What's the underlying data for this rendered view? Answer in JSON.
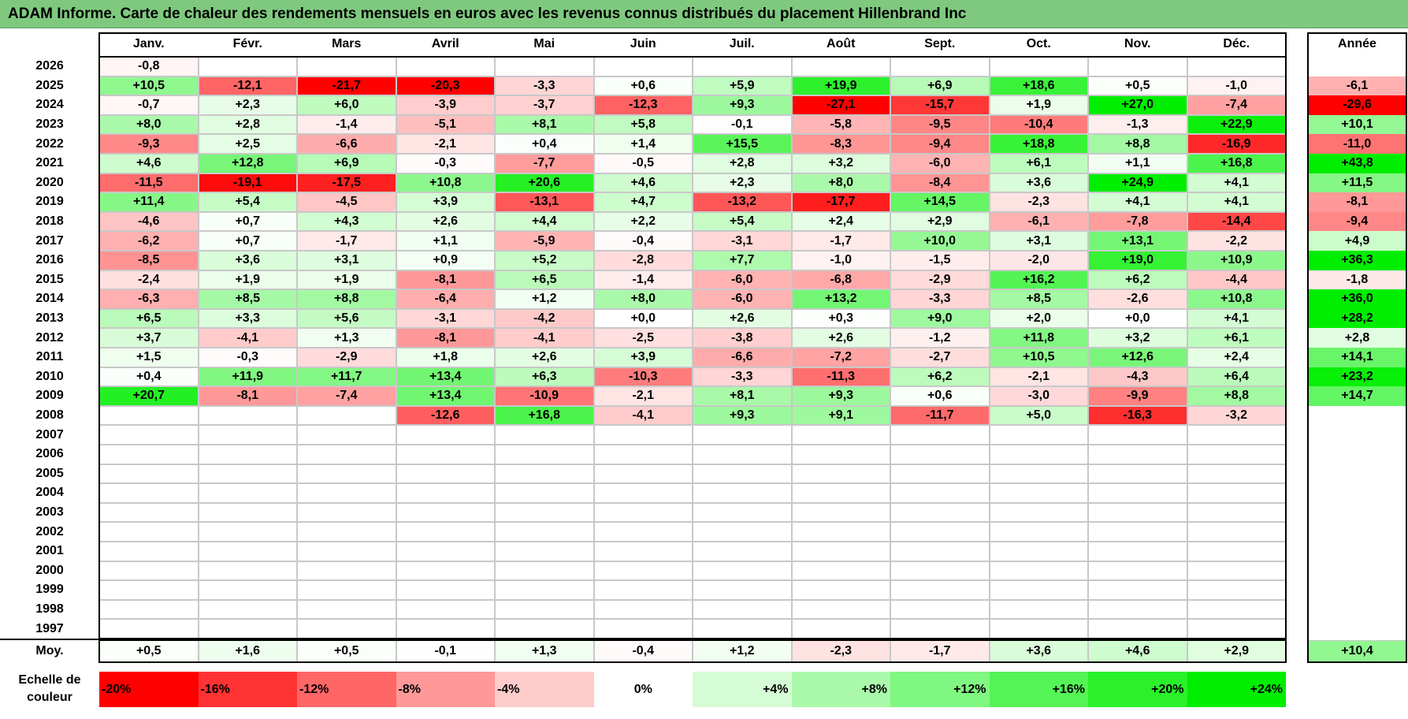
{
  "title": "ADAM Informe. Carte de chaleur des rendements mensuels en euros avec les revenus connus distribués du placement Hillenbrand Inc",
  "months": [
    "Janv.",
    "Févr.",
    "Mars",
    "Avril",
    "Mai",
    "Juin",
    "Juil.",
    "Août",
    "Sept.",
    "Oct.",
    "Nov.",
    "Déc."
  ],
  "annual_header": "Année",
  "avg_label": "Moy.",
  "scale_label_line1": "Echelle de",
  "scale_label_line2": "couleur",
  "scale": [
    "-20%",
    "-16%",
    "-12%",
    "-8%",
    "-4%",
    "0%",
    "+4%",
    "+8%",
    "+12%",
    "+16%",
    "+20%",
    "+24%"
  ],
  "colors": {
    "negative_max": "#ff0000",
    "zero": "#ffffff",
    "positive_max": "#00ee00",
    "title_bg": "#7fc97f"
  },
  "chart_data": {
    "type": "heatmap",
    "title": "ADAM Informe. Carte de chaleur des rendements mensuels en euros avec les revenus connus distribués du placement Hillenbrand Inc",
    "x_categories": [
      "Janv.",
      "Févr.",
      "Mars",
      "Avril",
      "Mai",
      "Juin",
      "Juil.",
      "Août",
      "Sept.",
      "Oct.",
      "Nov.",
      "Déc."
    ],
    "rows": [
      {
        "year": "2026",
        "values": [
          "-0,8",
          "",
          "",
          "",
          "",
          "",
          "",
          "",
          "",
          "",
          "",
          ""
        ],
        "annual": ""
      },
      {
        "year": "2025",
        "values": [
          "+10,5",
          "-12,1",
          "-21,7",
          "-20,3",
          "-3,3",
          "+0,6",
          "+5,9",
          "+19,9",
          "+6,9",
          "+18,6",
          "+0,5",
          "-1,0"
        ],
        "annual": "-6,1"
      },
      {
        "year": "2024",
        "values": [
          "-0,7",
          "+2,3",
          "+6,0",
          "-3,9",
          "-3,7",
          "-12,3",
          "+9,3",
          "-27,1",
          "-15,7",
          "+1,9",
          "+27,0",
          "-7,4"
        ],
        "annual": "-29,6"
      },
      {
        "year": "2023",
        "values": [
          "+8,0",
          "+2,8",
          "-1,4",
          "-5,1",
          "+8,1",
          "+5,8",
          "-0,1",
          "-5,8",
          "-9,5",
          "-10,4",
          "-1,3",
          "+22,9"
        ],
        "annual": "+10,1"
      },
      {
        "year": "2022",
        "values": [
          "-9,3",
          "+2,5",
          "-6,6",
          "-2,1",
          "+0,4",
          "+1,4",
          "+15,5",
          "-8,3",
          "-9,4",
          "+18,8",
          "+8,8",
          "-16,9"
        ],
        "annual": "-11,0"
      },
      {
        "year": "2021",
        "values": [
          "+4,6",
          "+12,8",
          "+6,9",
          "-0,3",
          "-7,7",
          "-0,5",
          "+2,8",
          "+3,2",
          "-6,0",
          "+6,1",
          "+1,1",
          "+16,8"
        ],
        "annual": "+43,8"
      },
      {
        "year": "2020",
        "values": [
          "-11,5",
          "-19,1",
          "-17,5",
          "+10,8",
          "+20,6",
          "+4,6",
          "+2,3",
          "+8,0",
          "-8,4",
          "+3,6",
          "+24,9",
          "+4,1"
        ],
        "annual": "+11,5"
      },
      {
        "year": "2019",
        "values": [
          "+11,4",
          "+5,4",
          "-4,5",
          "+3,9",
          "-13,1",
          "+4,7",
          "-13,2",
          "-17,7",
          "+14,5",
          "-2,3",
          "+4,1",
          "+4,1"
        ],
        "annual": "-8,1"
      },
      {
        "year": "2018",
        "values": [
          "-4,6",
          "+0,7",
          "+4,3",
          "+2,6",
          "+4,4",
          "+2,2",
          "+5,4",
          "+2,4",
          "+2,9",
          "-6,1",
          "-7,8",
          "-14,4"
        ],
        "annual": "-9,4"
      },
      {
        "year": "2017",
        "values": [
          "-6,2",
          "+0,7",
          "-1,7",
          "+1,1",
          "-5,9",
          "-0,4",
          "-3,1",
          "-1,7",
          "+10,0",
          "+3,1",
          "+13,1",
          "-2,2"
        ],
        "annual": "+4,9"
      },
      {
        "year": "2016",
        "values": [
          "-8,5",
          "+3,6",
          "+3,1",
          "+0,9",
          "+5,2",
          "-2,8",
          "+7,7",
          "-1,0",
          "-1,5",
          "-2,0",
          "+19,0",
          "+10,9"
        ],
        "annual": "+36,3"
      },
      {
        "year": "2015",
        "values": [
          "-2,4",
          "+1,9",
          "+1,9",
          "-8,1",
          "+6,5",
          "-1,4",
          "-6,0",
          "-6,8",
          "-2,9",
          "+16,2",
          "+6,2",
          "-4,4"
        ],
        "annual": "-1,8"
      },
      {
        "year": "2014",
        "values": [
          "-6,3",
          "+8,5",
          "+8,8",
          "-6,4",
          "+1,2",
          "+8,0",
          "-6,0",
          "+13,2",
          "-3,3",
          "+8,5",
          "-2,6",
          "+10,8"
        ],
        "annual": "+36,0"
      },
      {
        "year": "2013",
        "values": [
          "+6,5",
          "+3,3",
          "+5,6",
          "-3,1",
          "-4,2",
          "+0,0",
          "+2,6",
          "+0,3",
          "+9,0",
          "+2,0",
          "+0,0",
          "+4,1"
        ],
        "annual": "+28,2"
      },
      {
        "year": "2012",
        "values": [
          "+3,7",
          "-4,1",
          "+1,3",
          "-8,1",
          "-4,1",
          "-2,5",
          "-3,8",
          "+2,6",
          "-1,2",
          "+11,8",
          "+3,2",
          "+6,1"
        ],
        "annual": "+2,8"
      },
      {
        "year": "2011",
        "values": [
          "+1,5",
          "-0,3",
          "-2,9",
          "+1,8",
          "+2,6",
          "+3,9",
          "-6,6",
          "-7,2",
          "-2,7",
          "+10,5",
          "+12,6",
          "+2,4"
        ],
        "annual": "+14,1"
      },
      {
        "year": "2010",
        "values": [
          "+0,4",
          "+11,9",
          "+11,7",
          "+13,4",
          "+6,3",
          "-10,3",
          "-3,3",
          "-11,3",
          "+6,2",
          "-2,1",
          "-4,3",
          "+6,4"
        ],
        "annual": "+23,2"
      },
      {
        "year": "2009",
        "values": [
          "+20,7",
          "-8,1",
          "-7,4",
          "+13,4",
          "-10,9",
          "-2,1",
          "+8,1",
          "+9,3",
          "+0,6",
          "-3,0",
          "-9,9",
          "+8,8"
        ],
        "annual": "+14,7"
      },
      {
        "year": "2008",
        "values": [
          "",
          "",
          "",
          "-12,6",
          "+16,8",
          "-4,1",
          "+9,3",
          "+9,1",
          "-11,7",
          "+5,0",
          "-16,3",
          "-3,2"
        ],
        "annual": ""
      },
      {
        "year": "2007",
        "values": [
          "",
          "",
          "",
          "",
          "",
          "",
          "",
          "",
          "",
          "",
          "",
          ""
        ],
        "annual": ""
      },
      {
        "year": "2006",
        "values": [
          "",
          "",
          "",
          "",
          "",
          "",
          "",
          "",
          "",
          "",
          "",
          ""
        ],
        "annual": ""
      },
      {
        "year": "2005",
        "values": [
          "",
          "",
          "",
          "",
          "",
          "",
          "",
          "",
          "",
          "",
          "",
          ""
        ],
        "annual": ""
      },
      {
        "year": "2004",
        "values": [
          "",
          "",
          "",
          "",
          "",
          "",
          "",
          "",
          "",
          "",
          "",
          ""
        ],
        "annual": ""
      },
      {
        "year": "2003",
        "values": [
          "",
          "",
          "",
          "",
          "",
          "",
          "",
          "",
          "",
          "",
          "",
          ""
        ],
        "annual": ""
      },
      {
        "year": "2002",
        "values": [
          "",
          "",
          "",
          "",
          "",
          "",
          "",
          "",
          "",
          "",
          "",
          ""
        ],
        "annual": ""
      },
      {
        "year": "2001",
        "values": [
          "",
          "",
          "",
          "",
          "",
          "",
          "",
          "",
          "",
          "",
          "",
          ""
        ],
        "annual": ""
      },
      {
        "year": "2000",
        "values": [
          "",
          "",
          "",
          "",
          "",
          "",
          "",
          "",
          "",
          "",
          "",
          ""
        ],
        "annual": ""
      },
      {
        "year": "1999",
        "values": [
          "",
          "",
          "",
          "",
          "",
          "",
          "",
          "",
          "",
          "",
          "",
          ""
        ],
        "annual": ""
      },
      {
        "year": "1998",
        "values": [
          "",
          "",
          "",
          "",
          "",
          "",
          "",
          "",
          "",
          "",
          "",
          ""
        ],
        "annual": ""
      },
      {
        "year": "1997",
        "values": [
          "",
          "",
          "",
          "",
          "",
          "",
          "",
          "",
          "",
          "",
          "",
          ""
        ],
        "annual": ""
      }
    ],
    "average": {
      "values": [
        "+0,5",
        "+1,6",
        "+0,5",
        "-0,1",
        "+1,3",
        "-0,4",
        "+1,2",
        "-2,3",
        "-1,7",
        "+3,6",
        "+4,6",
        "+2,9"
      ],
      "annual": "+10,4"
    },
    "color_range": [
      -20,
      24
    ]
  }
}
